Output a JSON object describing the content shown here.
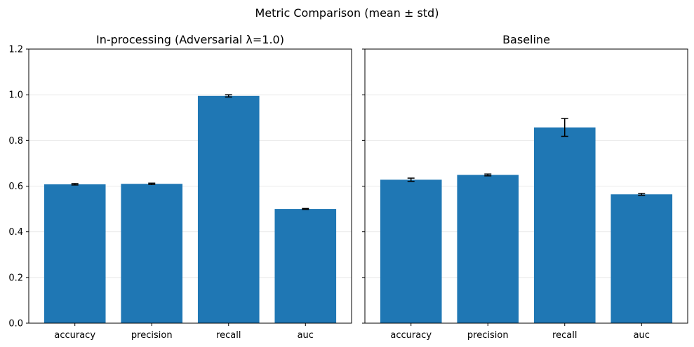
{
  "suptitle": "Metric Comparison (mean ± std)",
  "colors": {
    "bar": "#1f77b4",
    "error": "#000000",
    "grid": "#e6e6e6",
    "axis": "#000000"
  },
  "chart_data": [
    {
      "type": "bar",
      "title": "In-processing (Adversarial λ=1.0)",
      "categories": [
        "accuracy",
        "precision",
        "recall",
        "auc"
      ],
      "values": [
        0.608,
        0.61,
        0.995,
        0.5
      ],
      "errors": [
        0.003,
        0.003,
        0.005,
        0.002
      ],
      "ylim": [
        0,
        1.2
      ],
      "yticks": [
        "0.0",
        "0.2",
        "0.4",
        "0.6",
        "0.8",
        "1.0",
        "1.2"
      ],
      "grid": "y",
      "show_ytick_labels": true
    },
    {
      "type": "bar",
      "title": "Baseline",
      "categories": [
        "accuracy",
        "precision",
        "recall",
        "auc"
      ],
      "values": [
        0.628,
        0.649,
        0.857,
        0.564
      ],
      "errors": [
        0.007,
        0.004,
        0.039,
        0.004
      ],
      "ylim": [
        0,
        1.2
      ],
      "yticks": [
        "0.0",
        "0.2",
        "0.4",
        "0.6",
        "0.8",
        "1.0",
        "1.2"
      ],
      "grid": "y",
      "show_ytick_labels": false
    }
  ]
}
